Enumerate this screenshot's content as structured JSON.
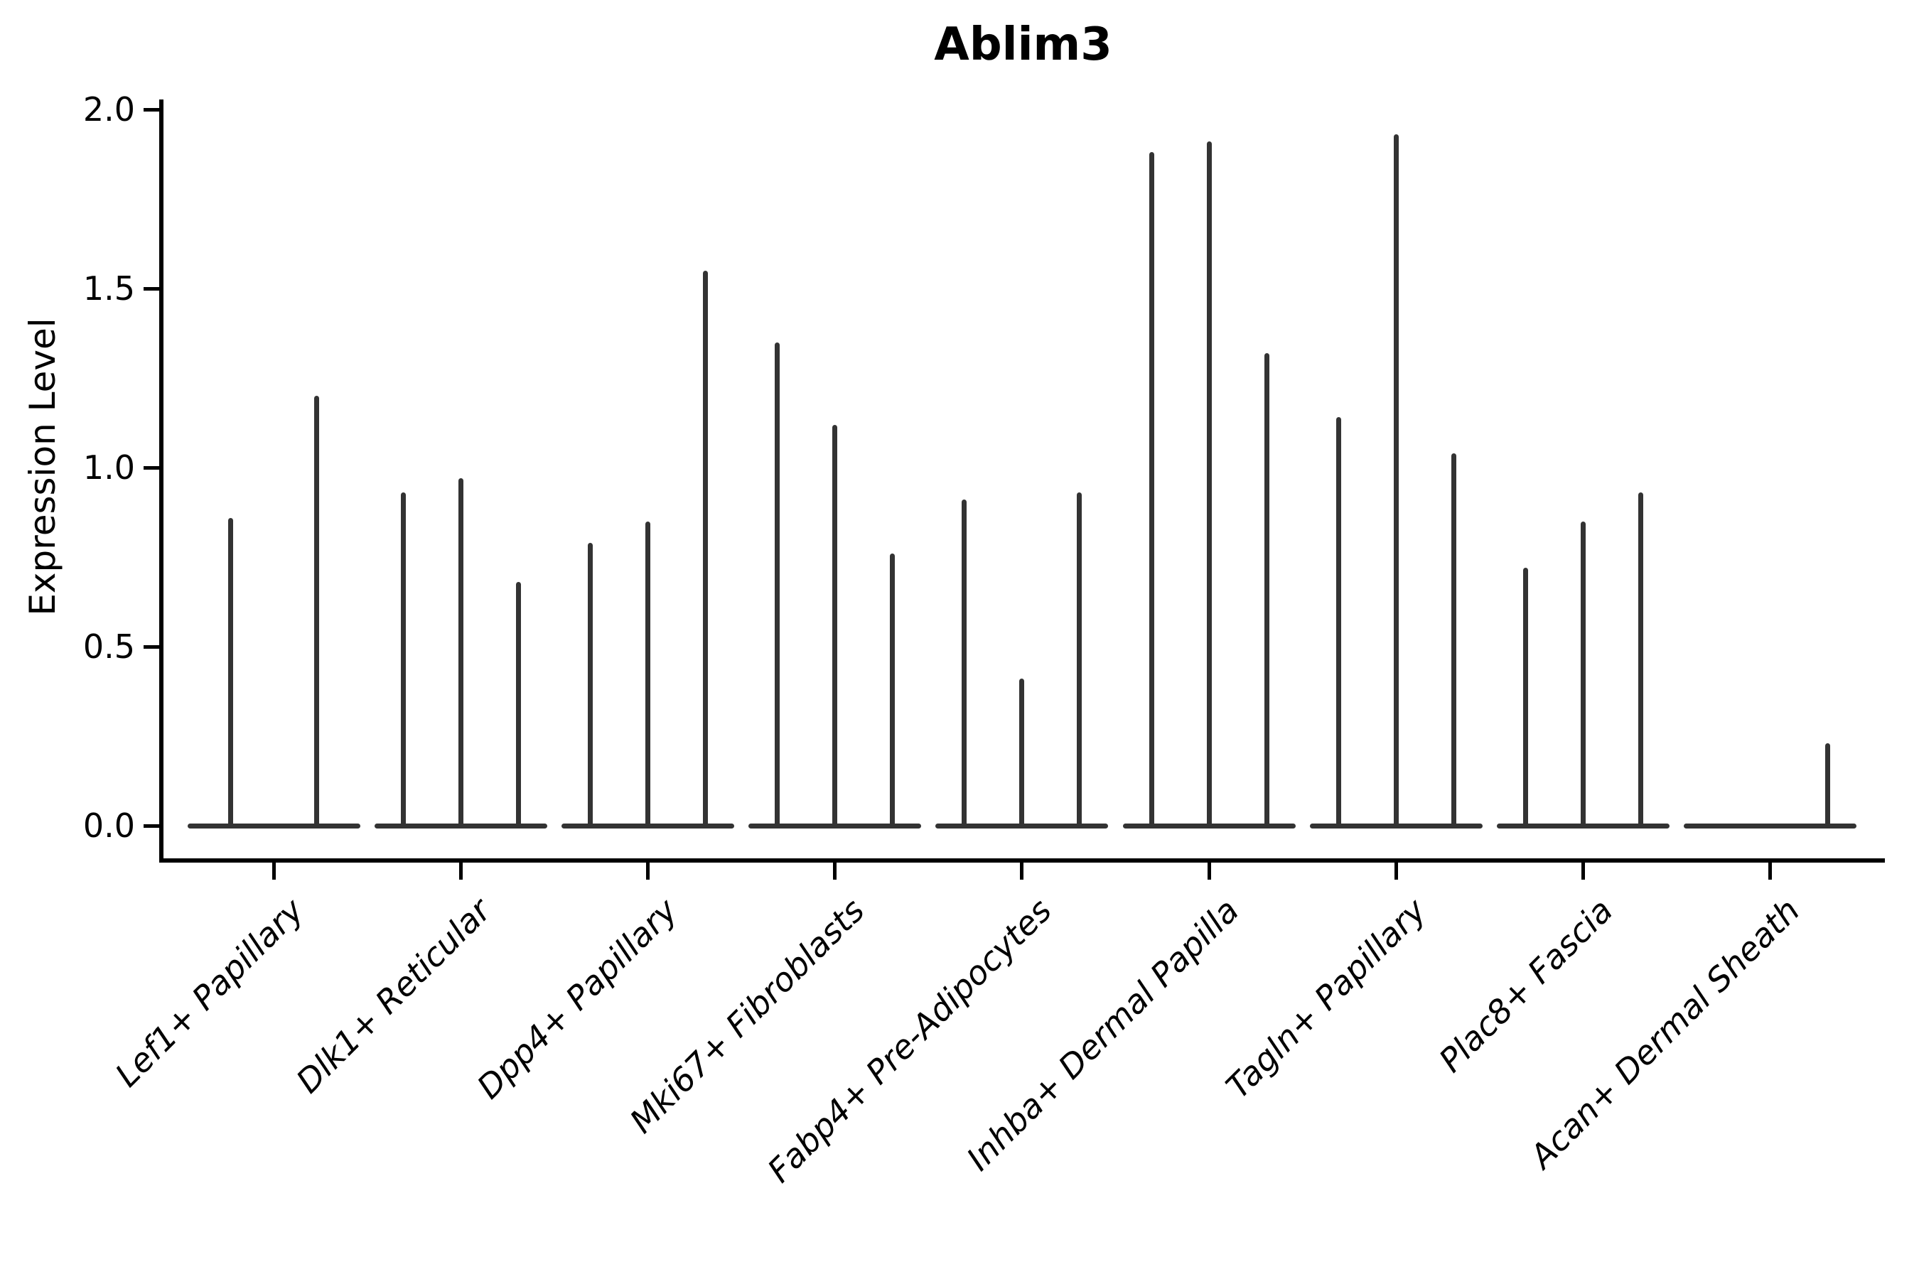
{
  "chart_data": {
    "type": "violin",
    "title": "Ablim3",
    "xlabel": "",
    "ylabel": "Expression Level",
    "ylim": [
      0,
      2.05
    ],
    "yticks": [
      0.0,
      0.5,
      1.0,
      1.5,
      2.0
    ],
    "ytick_labels": [
      "0.0",
      "0.5",
      "1.0",
      "1.5",
      "2.0"
    ],
    "grid": false,
    "legend_position": "none",
    "line_color": "#333333",
    "axis_color": "#000000",
    "background_color": "#ffffff",
    "categories": [
      "Lef1+ Papillary",
      "Dlk1+ Reticular",
      "Dpp4+ Papillary",
      "Mki67+ Fibroblasts",
      "Fabp4+ Pre-Adipocytes",
      "Inhba+ Dermal Papilla",
      "Tagln+ Papillary",
      "Plac8+ Fascia",
      "Acan+ Dermal Sheath"
    ],
    "groups": [
      {
        "category": "Lef1+ Papillary",
        "violin_peak_heights": [
          0.86,
          1.2
        ]
      },
      {
        "category": "Dlk1+ Reticular",
        "violin_peak_heights": [
          0.93,
          0.97,
          0.68
        ]
      },
      {
        "category": "Dpp4+ Papillary",
        "violin_peak_heights": [
          0.79,
          0.85,
          1.55
        ]
      },
      {
        "category": "Mki67+ Fibroblasts",
        "violin_peak_heights": [
          1.35,
          1.12,
          0.76
        ]
      },
      {
        "category": "Fabp4+ Pre-Adipocytes",
        "violin_peak_heights": [
          0.91,
          0.41,
          0.93
        ]
      },
      {
        "category": "Inhba+ Dermal Papilla",
        "violin_peak_heights": [
          1.88,
          1.91,
          1.32
        ]
      },
      {
        "category": "Tagln+ Papillary",
        "violin_peak_heights": [
          1.14,
          1.93,
          1.04
        ]
      },
      {
        "category": "Plac8+ Fascia",
        "violin_peak_heights": [
          0.72,
          0.85,
          0.93
        ]
      },
      {
        "category": "Acan+ Dermal Sheath",
        "violin_peak_heights": [
          0.0,
          0.0,
          0.23
        ]
      }
    ],
    "notes": "Sparse single-cell expression violins: each violin collapses to a flat baseline at 0 with a thin density spike rising to the listed peak expression value."
  }
}
